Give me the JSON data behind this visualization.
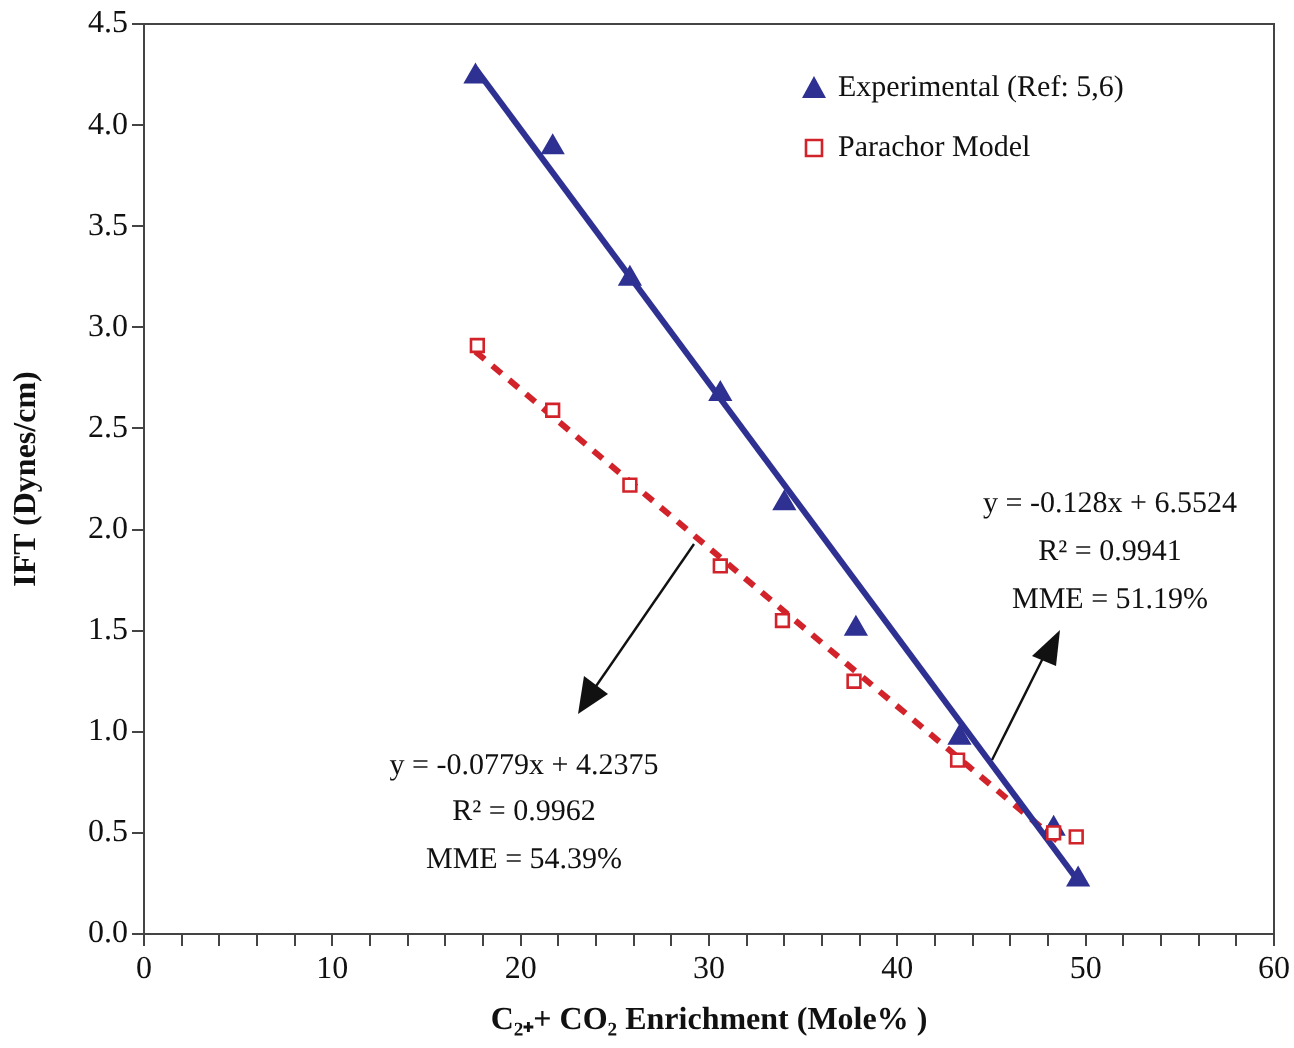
{
  "chart_data": {
    "type": "scatter",
    "xlabel": "C₂₊+ CO₂ Enrichment (Mole% )",
    "ylabel": "IFT (Dynes/cm)",
    "xlim": [
      0,
      60
    ],
    "ylim": [
      0,
      4.5
    ],
    "xticks": [
      0,
      {
        "value": 2,
        "label": null
      },
      {
        "value": 4,
        "label": null
      },
      {
        "value": 6,
        "label": null
      },
      {
        "value": 8,
        "label": null
      },
      10,
      {
        "value": 12,
        "label": null
      },
      {
        "value": 14,
        "label": null
      },
      {
        "value": 16,
        "label": null
      },
      {
        "value": 18,
        "label": null
      },
      20,
      {
        "value": 22,
        "label": null
      },
      {
        "value": 24,
        "label": null
      },
      {
        "value": 26,
        "label": null
      },
      {
        "value": 28,
        "label": null
      },
      30,
      {
        "value": 32,
        "label": null
      },
      {
        "value": 34,
        "label": null
      },
      {
        "value": 36,
        "label": null
      },
      {
        "value": 38,
        "label": null
      },
      40,
      {
        "value": 42,
        "label": null
      },
      {
        "value": 44,
        "label": null
      },
      {
        "value": 46,
        "label": null
      },
      {
        "value": 48,
        "label": null
      },
      50,
      {
        "value": 52,
        "label": null
      },
      {
        "value": 54,
        "label": null
      },
      {
        "value": 56,
        "label": null
      },
      {
        "value": 58,
        "label": null
      },
      60
    ],
    "yticks": [
      {
        "value": 0,
        "label": "0.0"
      },
      {
        "value": 0.5,
        "label": "0.5"
      },
      {
        "value": 1,
        "label": "1.0"
      },
      {
        "value": 1.5,
        "label": "1.5"
      },
      {
        "value": 2,
        "label": "2.0"
      },
      {
        "value": 2.5,
        "label": "2.5"
      },
      {
        "value": 3,
        "label": "3.0"
      },
      {
        "value": 3.5,
        "label": "3.5"
      },
      {
        "value": 4,
        "label": "4.0"
      },
      {
        "value": 4.5,
        "label": "4.5"
      }
    ],
    "grid": false,
    "legend": "top right",
    "series": [
      {
        "name": "Experimental (Ref: 5,6)",
        "color": "#2e3192",
        "marker": "triangle",
        "x": [
          17.6,
          21.7,
          25.8,
          30.6,
          34.0,
          37.8,
          43.3,
          48.3,
          49.6
        ],
        "values": [
          4.24,
          3.89,
          3.24,
          2.67,
          2.13,
          1.51,
          0.97,
          0.52,
          0.27
        ]
      },
      {
        "name": "Parachor Model",
        "color": "#d2232a",
        "marker": "square",
        "x": [
          17.7,
          21.7,
          25.8,
          30.6,
          33.9,
          37.7,
          43.2,
          48.3,
          49.5
        ],
        "values": [
          2.91,
          2.59,
          2.22,
          1.82,
          1.55,
          1.25,
          0.86,
          0.5,
          0.48
        ]
      },
      {
        "type": "line",
        "color": "#2e3192",
        "marker": "none",
        "line_style": "solid",
        "x": [
          17.6,
          49.7
        ],
        "values": [
          4.28,
          0.25
        ]
      },
      {
        "type": "line",
        "color": "#d2232a",
        "marker": "none",
        "line_style": "dashed",
        "x": [
          17.6,
          48.5
        ],
        "values": [
          2.88,
          0.46
        ]
      }
    ],
    "annotations": [
      "y = -0.128x + 6.5524",
      "R² = 0.9941",
      "MME = 51.19%",
      "y = -0.0779x + 4.2375",
      "R² = 0.9962",
      "MME = 54.39%"
    ]
  }
}
